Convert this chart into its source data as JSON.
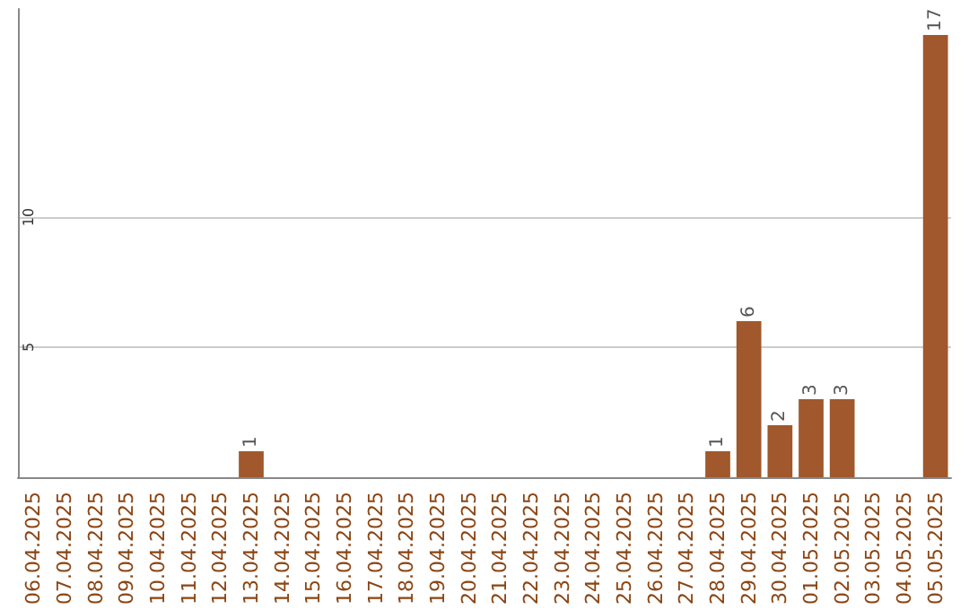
{
  "chart_data": {
    "type": "bar",
    "categories": [
      "06.04.2025",
      "07.04.2025",
      "08.04.2025",
      "09.04.2025",
      "10.04.2025",
      "11.04.2025",
      "12.04.2025",
      "13.04.2025",
      "14.04.2025",
      "15.04.2025",
      "16.04.2025",
      "17.04.2025",
      "18.04.2025",
      "19.04.2025",
      "20.04.2025",
      "21.04.2025",
      "22.04.2025",
      "23.04.2025",
      "24.04.2025",
      "25.04.2025",
      "26.04.2025",
      "27.04.2025",
      "28.04.2025",
      "29.04.2025",
      "30.04.2025",
      "01.05.2025",
      "02.05.2025",
      "03.05.2025",
      "04.05.2025",
      "05.05.2025"
    ],
    "values": [
      0,
      0,
      0,
      0,
      0,
      0,
      0,
      1,
      0,
      0,
      0,
      0,
      0,
      0,
      0,
      0,
      0,
      0,
      0,
      0,
      0,
      0,
      1,
      6,
      2,
      3,
      3,
      0,
      0,
      17
    ],
    "value_labels": [
      null,
      null,
      null,
      null,
      null,
      null,
      null,
      "1",
      null,
      null,
      null,
      null,
      null,
      null,
      null,
      null,
      null,
      null,
      null,
      null,
      null,
      null,
      "1",
      "6",
      "2",
      "3",
      "3",
      null,
      null,
      "17"
    ],
    "color": "#a0582c",
    "ylim": [
      0,
      18
    ],
    "yticks": [
      5,
      10
    ],
    "grid": "y"
  }
}
